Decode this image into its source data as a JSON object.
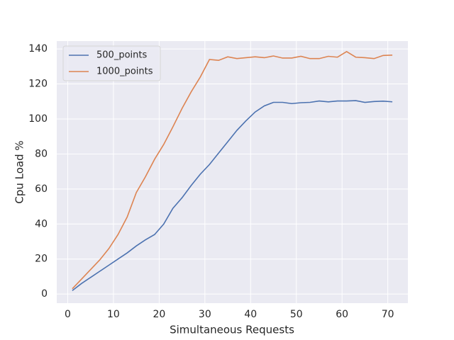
{
  "chart_data": {
    "type": "line",
    "xlabel": "Simultaneous Requests",
    "ylabel": "Cpu Load %",
    "x": [
      1,
      3,
      5,
      7,
      9,
      11,
      13,
      15,
      17,
      19,
      21,
      23,
      25,
      27,
      29,
      31,
      33,
      35,
      37,
      39,
      41,
      43,
      45,
      47,
      49,
      51,
      53,
      55,
      57,
      59,
      61,
      63,
      65,
      67,
      69,
      71
    ],
    "series": [
      {
        "name": "500_points",
        "color": "#4c72b0",
        "values": [
          2,
          6,
          9.5,
          13,
          16.5,
          20,
          23.5,
          27.5,
          31,
          34,
          40,
          49,
          55,
          62,
          68.5,
          74,
          80.5,
          87,
          93.5,
          99,
          104,
          107.5,
          109.5,
          109.5,
          108.8,
          109.3,
          109.5,
          110.3,
          109.8,
          110.3,
          110.3,
          110.5,
          109.5,
          110,
          110.2,
          109.8
        ]
      },
      {
        "name": "1000_points",
        "color": "#dd8452",
        "values": [
          3,
          8.5,
          14,
          19.5,
          26,
          34,
          44,
          58,
          67,
          77,
          85.5,
          95.5,
          106,
          115.5,
          124,
          134,
          133.5,
          135.5,
          134.5,
          135,
          135.5,
          135,
          136,
          134.8,
          134.8,
          135.8,
          134.5,
          134.5,
          135.8,
          135.3,
          138.5,
          135.3,
          135,
          134.5,
          136.3,
          136.5
        ]
      }
    ],
    "xlim": [
      -2.4,
      74.4
    ],
    "ylim": [
      -5.2,
      144.5
    ],
    "xticks": [
      0,
      10,
      20,
      30,
      40,
      50,
      60,
      70
    ],
    "yticks": [
      0,
      20,
      40,
      60,
      80,
      100,
      120,
      140
    ],
    "grid": true,
    "legend": "upper left"
  }
}
